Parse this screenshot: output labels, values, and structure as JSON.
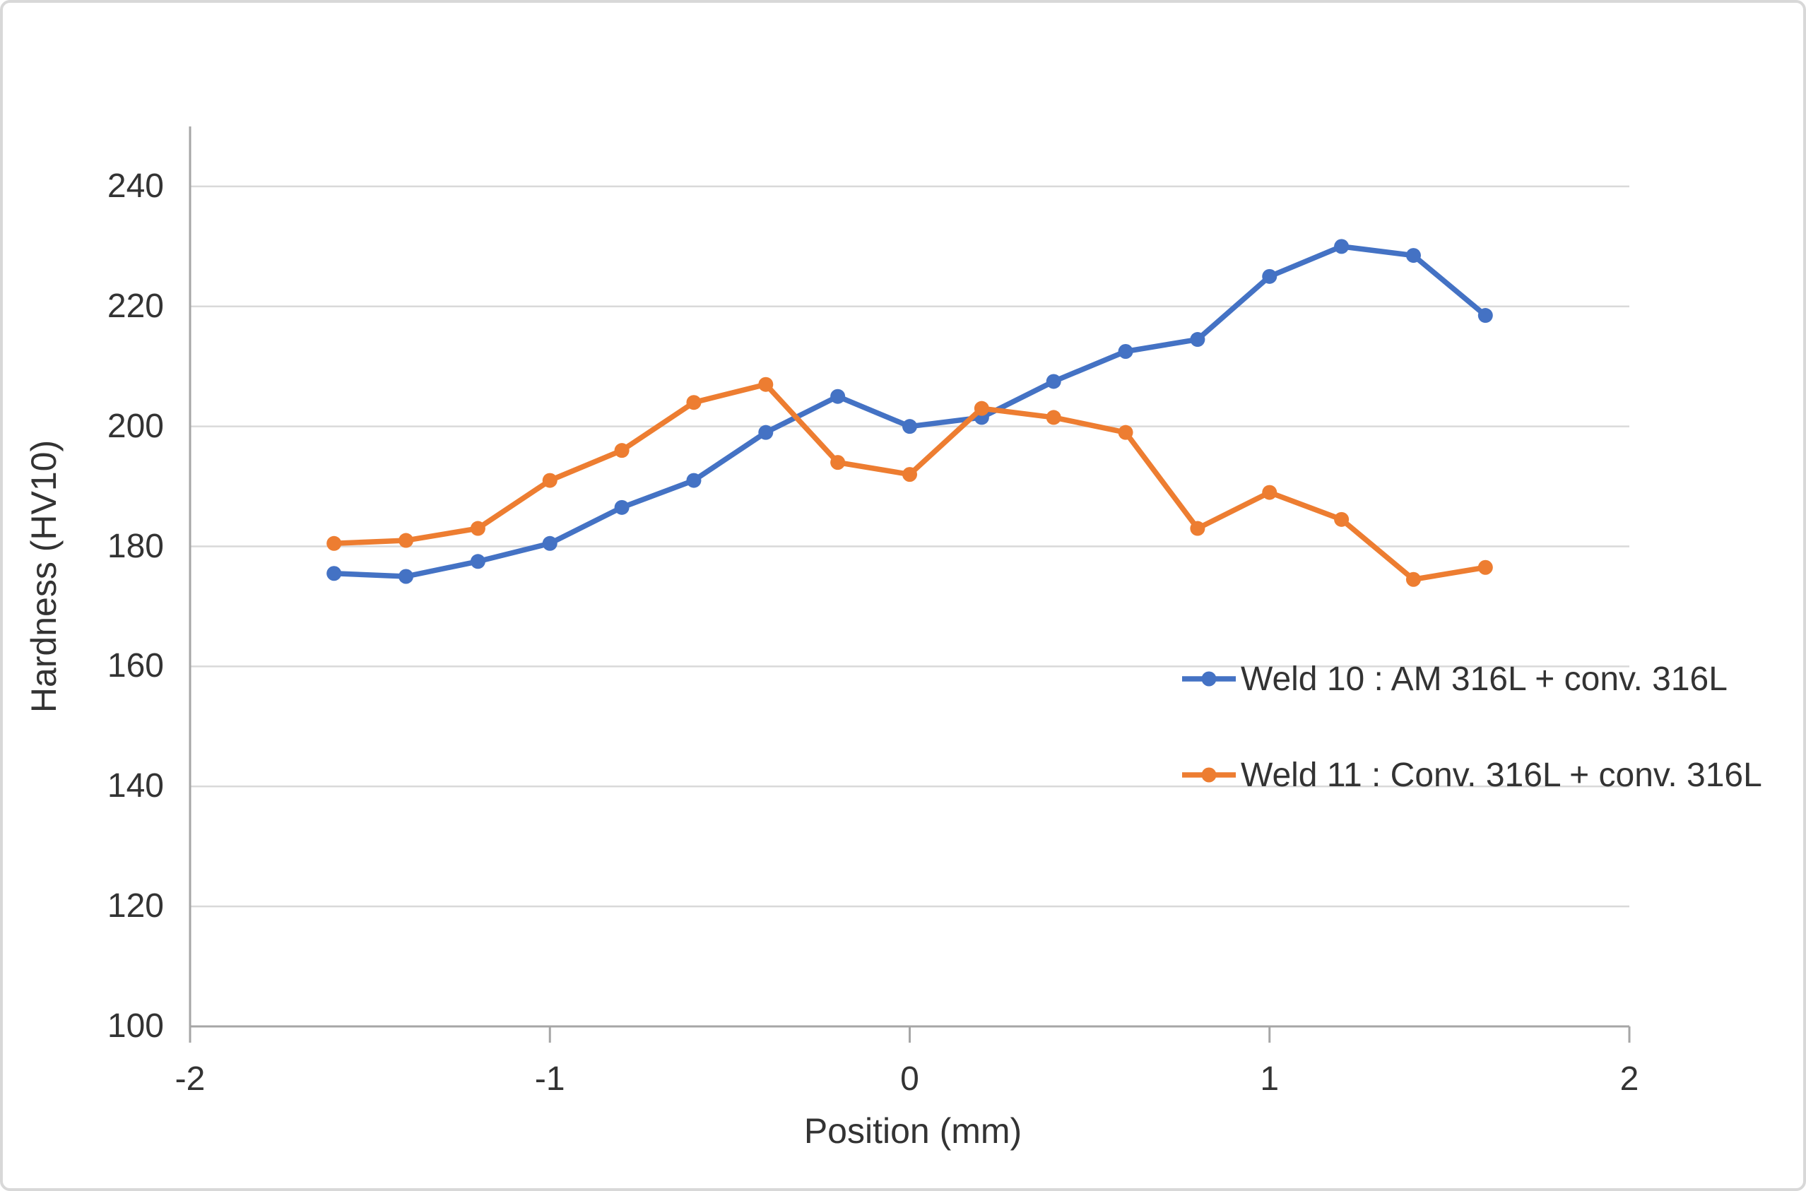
{
  "figure": {
    "background": "#ffffff",
    "border_color": "#d8d8d8"
  },
  "chart_data": {
    "type": "line",
    "title": "",
    "xlabel": "Position (mm)",
    "ylabel": "Hardness (HV10)",
    "xlim": [
      -2,
      2
    ],
    "ylim": [
      100,
      250
    ],
    "x_ticks": [
      -2,
      -1,
      0,
      1,
      2
    ],
    "y_ticks": [
      100,
      120,
      140,
      160,
      180,
      200,
      220,
      240
    ],
    "grid": "horizontal-only",
    "grid_color": "#d9d9d9",
    "axis_color": "#a6a6a6",
    "text_color": "#333333",
    "marker": "circle",
    "legend_position": "inside-right",
    "x": [
      -1.6,
      -1.4,
      -1.2,
      -1.0,
      -0.8,
      -0.6,
      -0.4,
      -0.2,
      0.0,
      0.2,
      0.4,
      0.6,
      0.8,
      1.0,
      1.2,
      1.4,
      1.6
    ],
    "series": [
      {
        "name": "Weld 10 : AM 316L + conv. 316L",
        "color": "#4472C4",
        "values": [
          175.5,
          175,
          177.5,
          180.5,
          186.5,
          191,
          199,
          205,
          200,
          201.5,
          207.5,
          212.5,
          214.5,
          225,
          230,
          228.5,
          218.5
        ]
      },
      {
        "name": "Weld 11 : Conv. 316L + conv. 316L",
        "color": "#ED7D31",
        "values": [
          180.5,
          181,
          183,
          191,
          196,
          204,
          207,
          194,
          192,
          203,
          201.5,
          199,
          183,
          189,
          184.5,
          174.5,
          176.5
        ]
      }
    ]
  }
}
